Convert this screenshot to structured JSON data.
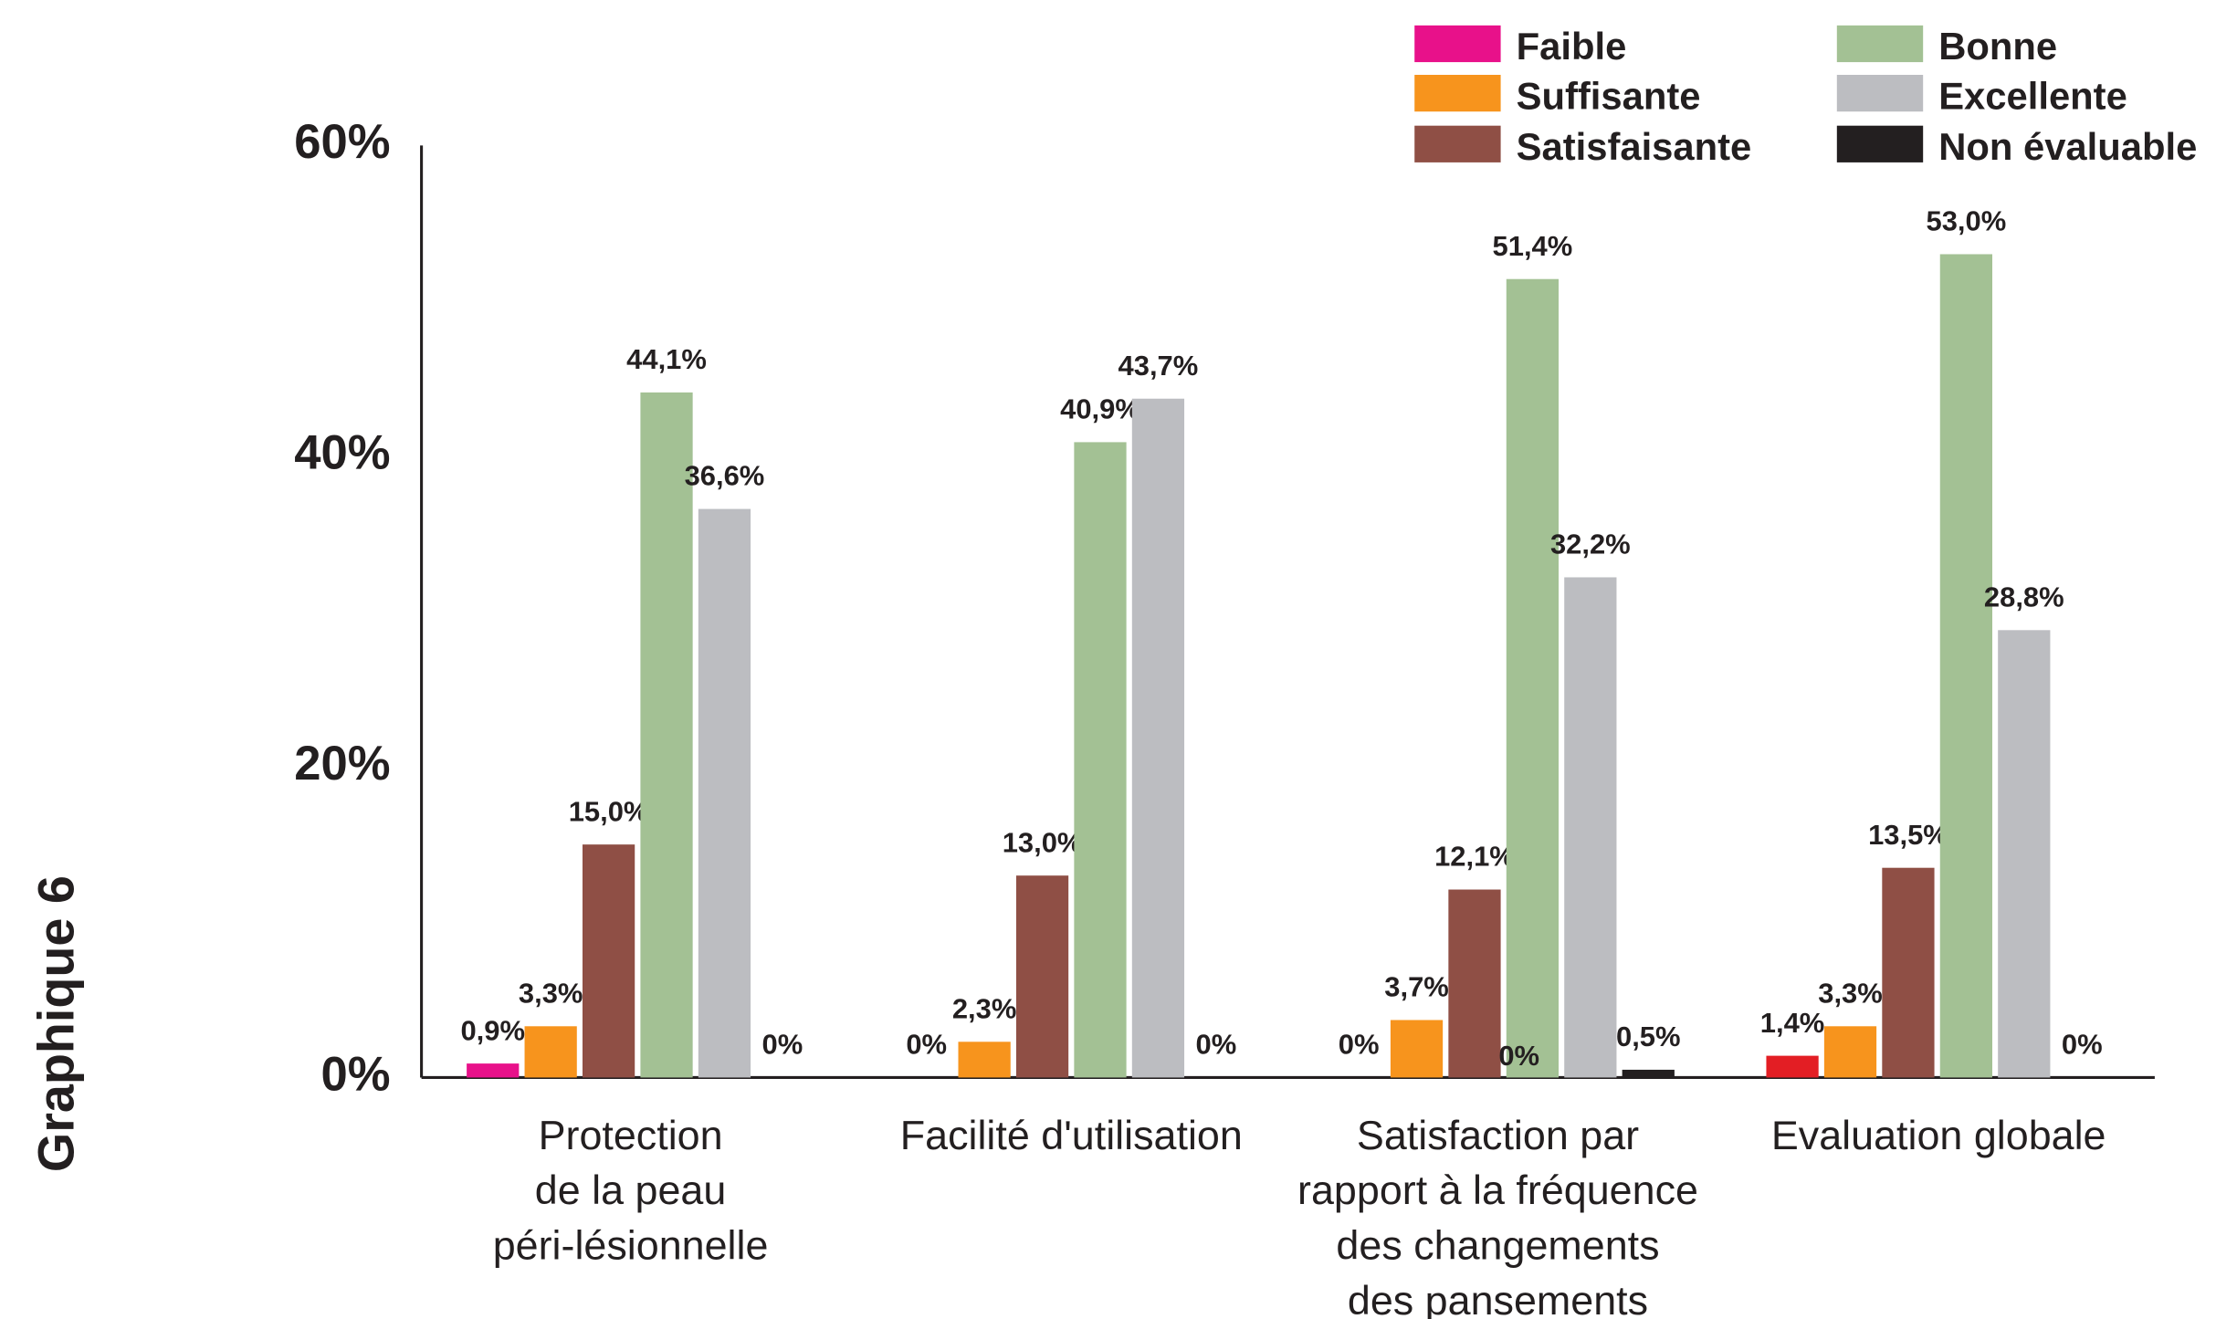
{
  "side_label": "Graphique 6",
  "chart_data": {
    "type": "bar",
    "categories": [
      [
        "Protection",
        "de la peau",
        "péri-lésionnelle"
      ],
      [
        "Facilité d'utilisation"
      ],
      [
        "Satisfaction par",
        "rapport à la fréquence",
        "des changements",
        "des pansements"
      ],
      [
        "Evaluation globale"
      ]
    ],
    "series": [
      {
        "name": "Faible",
        "color": "#e8118a",
        "colors": [
          "#e8118a",
          "#e8118a",
          "#e8118a",
          "#e31e24"
        ],
        "values": [
          0.9,
          0,
          0,
          1.4
        ],
        "value_labels": [
          "0,9%",
          "0%",
          "0%",
          "1,4%"
        ]
      },
      {
        "name": "Suffisante",
        "color": "#f7941d",
        "values": [
          3.3,
          2.3,
          3.7,
          3.3
        ],
        "value_labels": [
          "3,3%",
          "2,3%",
          "3,7%",
          "3,3%"
        ]
      },
      {
        "name": "Satisfaisante",
        "color": "#8f4f45",
        "values": [
          15.0,
          13.0,
          12.1,
          13.5
        ],
        "value_labels": [
          "15,0%",
          "13,0%",
          "12,1%",
          "13,5%"
        ]
      },
      {
        "name": "Bonne",
        "color": "#a3c194",
        "values": [
          44.1,
          40.9,
          51.4,
          53.0
        ],
        "value_labels": [
          "44,1%",
          "40,9%",
          "51,4%",
          "53,0%"
        ]
      },
      {
        "name": "Excellente",
        "color": "#bcbdc1",
        "values": [
          36.6,
          43.7,
          32.2,
          28.8
        ],
        "value_labels": [
          "36,6%",
          "43,7%",
          "32,2%",
          "28,8%"
        ]
      },
      {
        "name": "Non évaluable",
        "color": "#231f20",
        "values": [
          0,
          0,
          0.5,
          0
        ],
        "value_labels": [
          "0%",
          "0%",
          "0,5%",
          "0%"
        ]
      }
    ],
    "annotations": [
      {
        "text": "0%"
      }
    ],
    "ylim": [
      0,
      60
    ],
    "yticks": [
      {
        "value": 0,
        "label": "0%"
      },
      {
        "value": 20,
        "label": "20%"
      },
      {
        "value": 40,
        "label": "40%"
      },
      {
        "value": 60,
        "label": "60%"
      }
    ],
    "grid": false,
    "legend": "top-right"
  }
}
